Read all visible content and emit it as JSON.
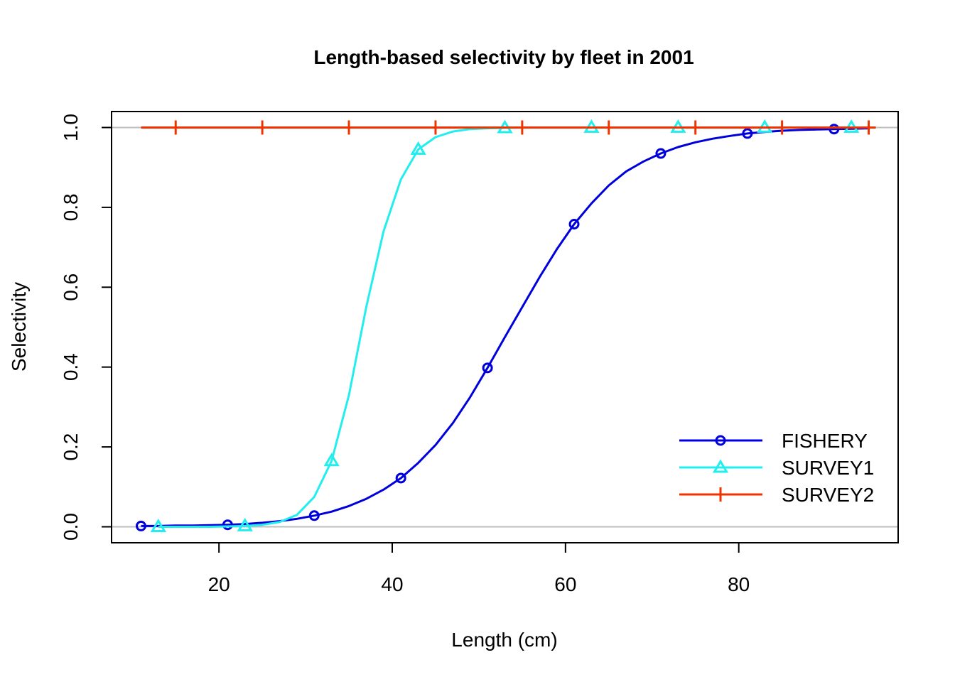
{
  "chart_data": {
    "type": "line",
    "title": "Length-based selectivity by fleet in 2001",
    "xlabel": "Length (cm)",
    "ylabel": "Selectivity",
    "xlim": [
      7.6,
      98.4
    ],
    "ylim": [
      -0.04,
      1.04
    ],
    "x_ticks": [
      20,
      40,
      60,
      80
    ],
    "x_tick_labels": [
      "20",
      "40",
      "60",
      "80"
    ],
    "y_ticks": [
      0,
      0.2,
      0.4,
      0.6,
      0.8,
      1.0
    ],
    "y_tick_labels": [
      "0.0",
      "0.2",
      "0.4",
      "0.6",
      "0.8",
      "1.0"
    ],
    "reference_lines": [
      0,
      1
    ],
    "legend_position": "bottom-right",
    "series": [
      {
        "name": "FISHERY",
        "color": "#0000dd",
        "marker": "circle",
        "line_x": [
          11,
          13,
          15,
          17,
          19,
          21,
          23,
          25,
          27,
          29,
          31,
          33,
          35,
          37,
          39,
          41,
          43,
          45,
          47,
          49,
          51,
          53,
          55,
          57,
          59,
          61,
          63,
          65,
          67,
          69,
          71,
          73,
          75,
          77,
          79,
          81,
          83,
          85,
          87,
          89,
          91,
          93,
          95
        ],
        "line_y": [
          0.002,
          0.002,
          0.003,
          0.003,
          0.004,
          0.005,
          0.007,
          0.01,
          0.014,
          0.02,
          0.028,
          0.038,
          0.052,
          0.07,
          0.093,
          0.122,
          0.16,
          0.205,
          0.26,
          0.325,
          0.398,
          0.475,
          0.55,
          0.625,
          0.695,
          0.758,
          0.81,
          0.855,
          0.89,
          0.915,
          0.935,
          0.951,
          0.963,
          0.972,
          0.979,
          0.985,
          0.989,
          0.992,
          0.994,
          0.995,
          0.996,
          0.997,
          0.998
        ],
        "marker_x": [
          11,
          21,
          31,
          41,
          51,
          61,
          71,
          81,
          91
        ],
        "marker_y": [
          0.002,
          0.005,
          0.028,
          0.122,
          0.398,
          0.758,
          0.935,
          0.985,
          0.996
        ]
      },
      {
        "name": "SURVEY1",
        "color": "#22eeee",
        "marker": "triangle",
        "line_x": [
          13,
          15,
          17,
          19,
          21,
          23,
          25,
          27,
          29,
          31,
          33,
          35,
          37,
          39,
          41,
          43,
          45,
          47,
          49,
          51,
          53,
          55,
          57,
          59,
          61,
          63,
          65,
          67,
          69,
          71,
          73,
          75,
          77,
          79,
          81,
          83,
          85,
          87,
          89,
          91,
          93,
          95
        ],
        "line_y": [
          0,
          0,
          0,
          0,
          0.001,
          0.002,
          0.005,
          0.012,
          0.03,
          0.075,
          0.165,
          0.33,
          0.55,
          0.74,
          0.87,
          0.945,
          0.976,
          0.99,
          0.996,
          0.998,
          0.999,
          1,
          1,
          1,
          1,
          1,
          1,
          1,
          1,
          1,
          1,
          1,
          1,
          1,
          1,
          1,
          1,
          1,
          1,
          1,
          1,
          1
        ],
        "marker_x": [
          13,
          23,
          33,
          43,
          53,
          63,
          73,
          83,
          93
        ],
        "marker_y": [
          0,
          0.002,
          0.165,
          0.945,
          0.999,
          1,
          1,
          1,
          1
        ]
      },
      {
        "name": "SURVEY2",
        "color": "#ee3300",
        "marker": "plus",
        "line_x": [
          11,
          95
        ],
        "line_y": [
          1,
          1
        ],
        "marker_x": [
          15,
          25,
          35,
          45,
          55,
          65,
          75,
          85,
          95
        ],
        "marker_y": [
          1,
          1,
          1,
          1,
          1,
          1,
          1,
          1,
          1
        ]
      }
    ]
  }
}
